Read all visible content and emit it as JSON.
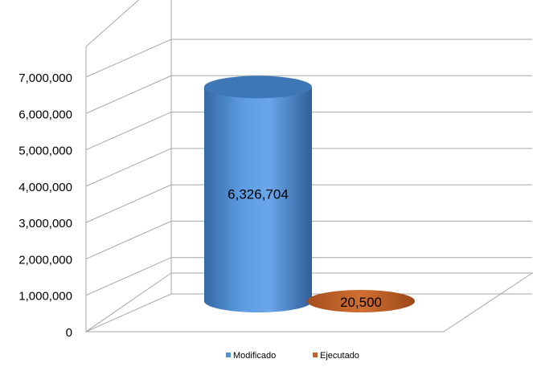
{
  "chart_data": {
    "type": "bar",
    "style": "3d-cylinder",
    "categories": [
      ""
    ],
    "series": [
      {
        "name": "Modificado",
        "values": [
          6326704
        ],
        "color": "#4f8fd6",
        "label": "6,326,704"
      },
      {
        "name": "Ejecutado",
        "values": [
          20500
        ],
        "color": "#c0622a",
        "label": "20,500"
      }
    ],
    "ylim": [
      0,
      7000000
    ],
    "yticks": [
      {
        "value": 0,
        "label": "0"
      },
      {
        "value": 1000000,
        "label": "1,000,000"
      },
      {
        "value": 2000000,
        "label": "2,000,000"
      },
      {
        "value": 3000000,
        "label": "3,000,000"
      },
      {
        "value": 4000000,
        "label": "4,000,000"
      },
      {
        "value": 5000000,
        "label": "5,000,000"
      },
      {
        "value": 6000000,
        "label": "6,000,000"
      },
      {
        "value": 7000000,
        "label": "7,000,000"
      }
    ],
    "grid": true,
    "legend": "bottom"
  }
}
